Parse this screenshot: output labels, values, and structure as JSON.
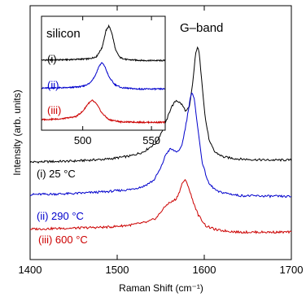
{
  "chart_data": [
    {
      "type": "line",
      "title": "G–band",
      "xlabel": "Raman Shift (cm⁻¹)",
      "ylabel": "Intensity (arb. units)",
      "xlim": [
        1400,
        1700
      ],
      "xticks": [
        1400,
        1500,
        1600,
        1700
      ],
      "y_tick_labels": false,
      "grid": false,
      "legend": "none",
      "series": [
        {
          "name": "(i) 25 °C",
          "color": "#000000",
          "points": [
            [
              1400,
              0.76
            ],
            [
              1450,
              0.77
            ],
            [
              1490,
              0.79
            ],
            [
              1515,
              0.82
            ],
            [
              1530,
              0.86
            ],
            [
              1545,
              0.95
            ],
            [
              1555,
              1.13
            ],
            [
              1562,
              1.3
            ],
            [
              1568,
              1.37
            ],
            [
              1574,
              1.33
            ],
            [
              1579,
              1.26
            ],
            [
              1583,
              1.3
            ],
            [
              1587,
              1.56
            ],
            [
              1590,
              1.82
            ],
            [
              1592,
              1.9
            ],
            [
              1594,
              1.84
            ],
            [
              1597,
              1.58
            ],
            [
              1601,
              1.2
            ],
            [
              1606,
              0.96
            ],
            [
              1612,
              0.86
            ],
            [
              1622,
              0.81
            ],
            [
              1640,
              0.79
            ],
            [
              1670,
              0.78
            ],
            [
              1700,
              0.78
            ]
          ]
        },
        {
          "name": "(ii) 290 °C",
          "color": "#0000cc",
          "points": [
            [
              1400,
              0.44
            ],
            [
              1450,
              0.45
            ],
            [
              1490,
              0.47
            ],
            [
              1515,
              0.49
            ],
            [
              1530,
              0.52
            ],
            [
              1542,
              0.58
            ],
            [
              1550,
              0.7
            ],
            [
              1556,
              0.84
            ],
            [
              1561,
              0.89
            ],
            [
              1566,
              0.87
            ],
            [
              1571,
              0.86
            ],
            [
              1575,
              0.95
            ],
            [
              1580,
              1.18
            ],
            [
              1584,
              1.4
            ],
            [
              1586,
              1.44
            ],
            [
              1589,
              1.36
            ],
            [
              1593,
              1.06
            ],
            [
              1598,
              0.74
            ],
            [
              1605,
              0.55
            ],
            [
              1615,
              0.47
            ],
            [
              1640,
              0.43
            ],
            [
              1700,
              0.42
            ]
          ]
        },
        {
          "name": "(iii) 600 °C",
          "color": "#cc0000",
          "points": [
            [
              1400,
              0.1
            ],
            [
              1450,
              0.11
            ],
            [
              1490,
              0.12
            ],
            [
              1515,
              0.14
            ],
            [
              1535,
              0.17
            ],
            [
              1545,
              0.21
            ],
            [
              1552,
              0.29
            ],
            [
              1558,
              0.35
            ],
            [
              1563,
              0.37
            ],
            [
              1568,
              0.4
            ],
            [
              1572,
              0.48
            ],
            [
              1575,
              0.56
            ],
            [
              1578,
              0.58
            ],
            [
              1581,
              0.54
            ],
            [
              1586,
              0.4
            ],
            [
              1593,
              0.24
            ],
            [
              1602,
              0.13
            ],
            [
              1615,
              0.09
            ],
            [
              1640,
              0.07
            ],
            [
              1700,
              0.07
            ]
          ]
        }
      ]
    },
    {
      "type": "line",
      "title": "silicon",
      "xlim": [
        470,
        560
      ],
      "xticks": [
        500,
        550
      ],
      "grid": false,
      "legend": "none",
      "series": [
        {
          "name": "(i)",
          "color": "#000000",
          "points": [
            [
              470,
              1.5
            ],
            [
              490,
              1.51
            ],
            [
              505,
              1.53
            ],
            [
              510,
              1.58
            ],
            [
              514,
              1.78
            ],
            [
              517,
              2.18
            ],
            [
              519,
              2.28
            ],
            [
              521,
              2.14
            ],
            [
              524,
              1.72
            ],
            [
              527,
              1.56
            ],
            [
              532,
              1.51
            ],
            [
              545,
              1.49
            ],
            [
              560,
              1.49
            ]
          ]
        },
        {
          "name": "(ii)",
          "color": "#0000cc",
          "points": [
            [
              470,
              0.86
            ],
            [
              490,
              0.87
            ],
            [
              500,
              0.9
            ],
            [
              505,
              0.97
            ],
            [
              509,
              1.14
            ],
            [
              512,
              1.37
            ],
            [
              514,
              1.44
            ],
            [
              516,
              1.36
            ],
            [
              519,
              1.12
            ],
            [
              523,
              0.95
            ],
            [
              528,
              0.87
            ],
            [
              540,
              0.84
            ],
            [
              560,
              0.84
            ]
          ]
        },
        {
          "name": "(iii)",
          "color": "#cc0000",
          "points": [
            [
              470,
              0.14
            ],
            [
              485,
              0.16
            ],
            [
              495,
              0.21
            ],
            [
              500,
              0.33
            ],
            [
              504,
              0.51
            ],
            [
              507,
              0.58
            ],
            [
              510,
              0.5
            ],
            [
              514,
              0.29
            ],
            [
              519,
              0.14
            ],
            [
              528,
              0.09
            ],
            [
              545,
              0.08
            ],
            [
              560,
              0.08
            ]
          ]
        }
      ]
    }
  ]
}
